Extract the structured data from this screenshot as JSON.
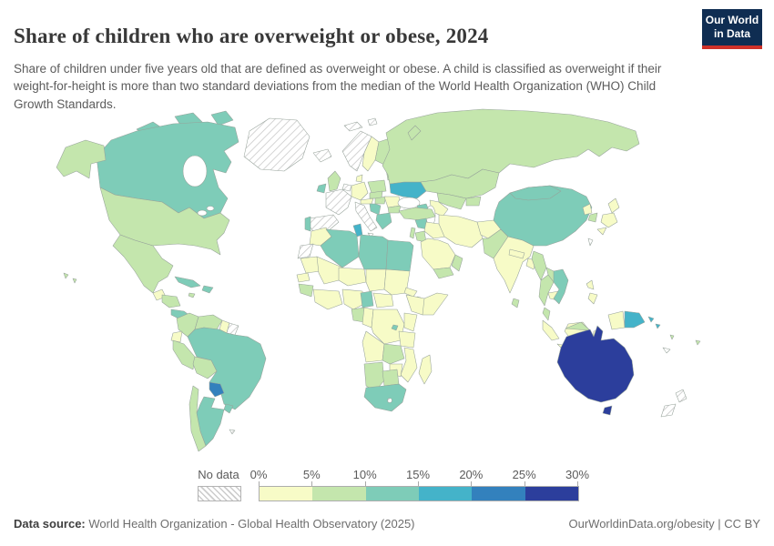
{
  "header": {
    "title": "Share of children who are overweight or obese, 2024",
    "subtitle": "Share of children under five years old that are defined as overweight or obese. A child is classified as overweight if their weight-for-height is more than two standard deviations from the median of the World Health Organization (WHO) Child Growth Standards.",
    "logo": {
      "line1": "Our World",
      "line2": "in Data",
      "bg": "#0f2d52",
      "accent": "#cf3129"
    }
  },
  "legend": {
    "no_data_label": "No data",
    "ticks": [
      "0%",
      "5%",
      "10%",
      "15%",
      "20%",
      "25%",
      "30%"
    ]
  },
  "footer": {
    "datasource_label": "Data source:",
    "datasource_value": " World Health Organization - Global Health Observatory (2025)",
    "rights": "OurWorldinData.org/obesity | CC BY"
  },
  "chart_data": {
    "type": "choropleth",
    "title": "Share of children who are overweight or obese, 2024",
    "unit": "% of children under five overweight or obese",
    "bin_edges_percent": [
      0,
      5,
      10,
      15,
      20,
      25,
      30
    ],
    "bin_labels": [
      "0-5%",
      "5-10%",
      "10-15%",
      "15-20%",
      "20-25%",
      "25-30%"
    ],
    "palette": [
      "#f7fbc7",
      "#c4e6ad",
      "#7eccb8",
      "#44b3c9",
      "#3381bd",
      "#2c3e9c"
    ],
    "no_data_style": "gray-diagonal-hatch",
    "regions": {
      "greenland": "no_data",
      "iceland": "no_data",
      "svalbard": "no_data",
      "norway": "no_data",
      "france": "no_data",
      "benelux": "no_data",
      "spain": "no_data",
      "italy": "no_data",
      "wsahara": "no_data",
      "suriname_guiana": "no_data",
      "taiwan": "no_data",
      "newcaledonia": "no_data",
      "newzealand": "no_data",
      "lesotho": "no_data",
      "falklands": "no_data",
      "sweden": 0,
      "denmark": 0,
      "germany": 0,
      "austria": 0,
      "romania": 0,
      "guatemala": 0,
      "guyana": 0,
      "ecuador": 0,
      "morocco": 0,
      "mauritania": 0,
      "mali_burkina": 0,
      "niger": 0,
      "chad": 0,
      "sudan": 0,
      "eritrea": 0,
      "senegal": 0,
      "ivory_ghana": 0,
      "nigeria": 0,
      "car": 0,
      "ethiopia": 0,
      "somalia": 0,
      "congo": 0,
      "drc": 0,
      "uganda_kenya": 0,
      "tanzania": 0,
      "angola": 0,
      "malawi_mozambique": 0,
      "zimbabwe": 0,
      "madagascar": 0,
      "turkmenistan": 0,
      "iraq": 0,
      "iran": 0,
      "afghanistan": 0,
      "saudi": 0,
      "india": 0,
      "nepal_bhutan": 0,
      "bangladesh": 0,
      "cambodia": 0,
      "nkorea": 0,
      "japan": 0,
      "philippines": 0,
      "indonesia": 0,
      "alaska": 1,
      "usa": 1,
      "mexico": 1,
      "honduras_nicaragua": 1,
      "jamaica": 1,
      "hawaii": 1,
      "colombia": 1,
      "venezuela": 1,
      "peru": 1,
      "bolivia": 1,
      "chile": 1,
      "uk": 1,
      "finland": 1,
      "baltics": 1,
      "poland": 1,
      "czech_slovak": 1,
      "hungary": 1,
      "bulgaria": 1,
      "belarus": 1,
      "turkey": 1,
      "lebanon_israel": 1,
      "jordan": 1,
      "yemen": 1,
      "oman_uae": 1,
      "kazakhstan": 1,
      "uzbekistan": 1,
      "kyrgyz_tajik": 1,
      "russia": 1,
      "guinea_sl": 1,
      "gabon": 1,
      "zambia": 1,
      "namibia": 1,
      "botswana": 1,
      "pakistan": 1,
      "srilanka": 1,
      "myanmar": 1,
      "thailand": 1,
      "laos": 1,
      "malaysia_pen": 1,
      "malaysia_borneo": 1,
      "skorea": 1,
      "fiji": 1,
      "vanuatu": 1,
      "canada": 2,
      "cuba": 2,
      "hispaniola": 2,
      "costarica_panama": 2,
      "brazil": 2,
      "argentina": 2,
      "uruguay": 2,
      "ireland": 2,
      "portugal": 2,
      "balkans": 2,
      "albania_greece": 2,
      "caucasus": 2,
      "syria": 2,
      "algeria": 2,
      "libya": 2,
      "egypt": 2,
      "cameroon": 2,
      "rwanda_burundi": 2,
      "djibouti": 2,
      "south_africa": 2,
      "china": 2,
      "mongolia": 2,
      "vietnam": 2,
      "tunisia": 3,
      "ukraine": 3,
      "png": 3,
      "solomon": 3,
      "paraguay": 4,
      "australia": 5
    }
  }
}
